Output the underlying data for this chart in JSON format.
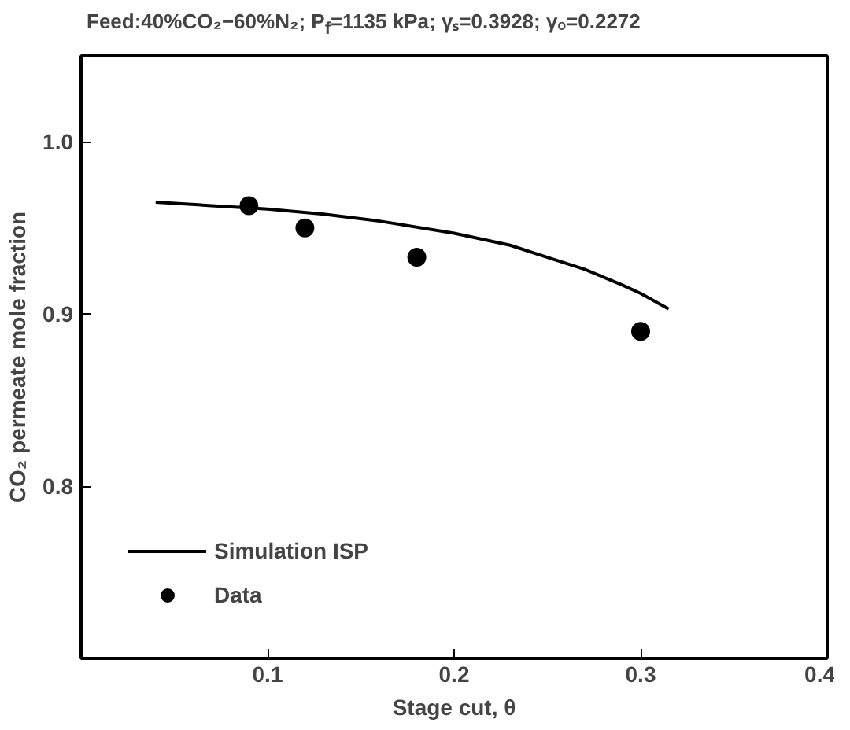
{
  "chart_data": {
    "type": "line",
    "title": "Feed:40%CO₂−60%N₂; P$_{f}$=1135 kPa; γₛ=0.3928; γₒ=0.2272",
    "xlabel": "Stage cut, θ",
    "ylabel": "CO₂ permeate mole fraction",
    "xlim": [
      0,
      0.4
    ],
    "ylim": [
      0.7,
      1.05
    ],
    "xticks": [
      0.1,
      0.2,
      0.3,
      0.4
    ],
    "yticks": [
      0.8,
      0.9,
      {
        "value": 1,
        "label": "1.0"
      }
    ],
    "series": [
      {
        "name": "Simulation ISP",
        "type": "line",
        "color": "#000000",
        "x": [
          0.04,
          0.07,
          0.1,
          0.13,
          0.16,
          0.2,
          0.23,
          0.25,
          0.27,
          0.29,
          0.3,
          0.315
        ],
        "values": [
          0.965,
          0.963,
          0.961,
          0.958,
          0.954,
          0.947,
          0.94,
          0.933,
          0.926,
          0.917,
          0.912,
          0.903
        ]
      },
      {
        "name": "Data",
        "type": "scatter",
        "color": "#000000",
        "x": [
          0.09,
          0.12,
          0.18,
          0.3
        ],
        "values": [
          0.963,
          0.95,
          0.933,
          0.89
        ]
      }
    ],
    "legend": "bottom left",
    "grid": false
  }
}
